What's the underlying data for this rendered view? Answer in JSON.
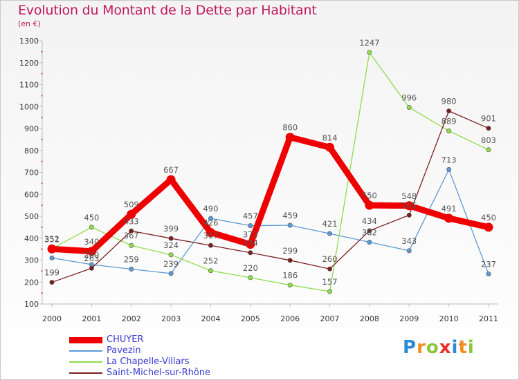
{
  "title": "Evolution du Montant de la Dette par Habitant",
  "subtitle": "(en €)",
  "logo": {
    "letters": [
      "P",
      "r",
      "o",
      "x",
      "i",
      "t",
      "i"
    ],
    "colors": [
      "#2a8bd6",
      "#f28c1e",
      "#8cc63f",
      "#e7302a",
      "#2a8bd6",
      "#f28c1e",
      "#8cc63f"
    ]
  },
  "chart_data": {
    "type": "line",
    "x": [
      "2000",
      "2001",
      "2002",
      "2003",
      "2004",
      "2005",
      "2006",
      "2007",
      "2008",
      "2009",
      "2010",
      "2011"
    ],
    "ylim": [
      100,
      1300
    ],
    "yticks": [
      100,
      200,
      300,
      400,
      500,
      600,
      700,
      800,
      900,
      1000,
      1100,
      1200,
      1300
    ],
    "grid": false,
    "legend_position": "bottom-left",
    "series": [
      {
        "name": "CHUYER",
        "color": "#ee0000",
        "values": [
          351,
          340,
          509,
          667,
          426,
          372,
          860,
          814,
          550,
          548,
          491,
          450
        ],
        "width": 9
      },
      {
        "name": "Pavezin",
        "color": "#5b9bd5",
        "values": [
          310,
          280,
          259,
          239,
          490,
          457,
          459,
          421,
          382,
          343,
          713,
          237
        ],
        "width": 1.3
      },
      {
        "name": "La Chapelle-Villars",
        "color": "#8fdc4a",
        "values": [
          352,
          450,
          367,
          324,
          252,
          220,
          186,
          157,
          1247,
          996,
          889,
          803
        ],
        "width": 1.3
      },
      {
        "name": "Saint-Michel-sur-Rhône",
        "color": "#7a1f1f",
        "values": [
          199,
          263,
          433,
          399,
          367,
          334,
          299,
          260,
          434,
          505,
          980,
          901
        ],
        "width": 1.3
      }
    ],
    "data_labels": [
      [
        "351",
        "340",
        "509",
        "667",
        "426",
        "372",
        "860",
        "814",
        "550",
        "548",
        "491",
        "450"
      ],
      [
        "",
        "280",
        "259",
        "239",
        "490",
        "457",
        "459",
        "421",
        "382",
        "343",
        "713",
        "237"
      ],
      [
        "352",
        "450",
        "367",
        "324",
        "252",
        "220",
        "186",
        "157",
        "1247",
        "996",
        "889",
        "803"
      ],
      [
        "199",
        "263",
        "433",
        "399",
        "367",
        "334",
        "299",
        "260",
        "434",
        "505",
        "980",
        "901"
      ]
    ]
  }
}
